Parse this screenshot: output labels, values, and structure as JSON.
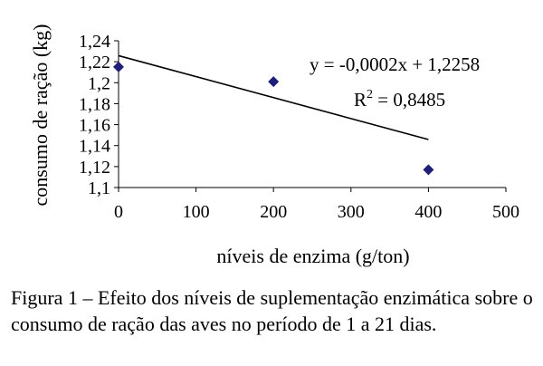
{
  "chart_data": {
    "type": "scatter",
    "xlabel": "níveis de enzima (g/ton)",
    "ylabel": "consumo de ração (kg)",
    "xlim": [
      0,
      500
    ],
    "ylim": [
      1.1,
      1.24
    ],
    "x_ticks": [
      "0",
      "100",
      "200",
      "300",
      "400",
      "500"
    ],
    "y_ticks": [
      "1,1",
      "1,12",
      "1,14",
      "1,16",
      "1,18",
      "1,2",
      "1,22",
      "1,24"
    ],
    "grid": false,
    "series": [
      {
        "points": [
          {
            "x": 0,
            "y": 1.215
          },
          {
            "x": 200,
            "y": 1.201
          },
          {
            "x": 400,
            "y": 1.117
          }
        ],
        "color": "#1f1f7a"
      }
    ],
    "trendline": {
      "slope": -0.0002,
      "intercept": 1.2258,
      "x_range": [
        0,
        400
      ],
      "equation": "y = -0,0002x + 1,2258",
      "r2_label": "R",
      "r2_exponent": "2",
      "r2_value": " = 0,8485"
    }
  },
  "caption": "Figura 1 – Efeito dos níveis de suplementação enzimática sobre o consumo de ração das aves no período de 1 a 21 dias."
}
